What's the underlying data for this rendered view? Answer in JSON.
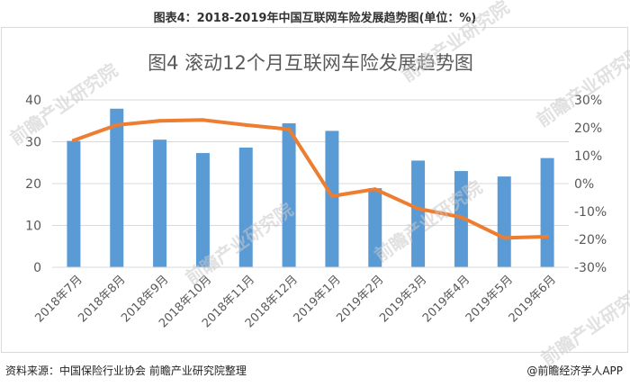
{
  "caption": "图表4：2018-2019年中国互联网车险发展趋势图(单位：%)",
  "footer": {
    "source": "资料来源：中国保险行业协会 前瞻产业研究院整理",
    "brand": "@前瞻经济学人APP"
  },
  "watermark": "前瞻产业研究院",
  "colors": {
    "bar": "#5b9bd5",
    "line": "#ed7d31",
    "grid": "#d9d9d9",
    "axis_text": "#595959"
  },
  "chart_data": {
    "type": "bar",
    "title": "图4 滚动12个月互联网车险发展趋势图",
    "categories": [
      "2018年7月",
      "2018年8月",
      "2018年9月",
      "2018年10月",
      "2018年11月",
      "2018年12月",
      "2019年1月",
      "2019年2月",
      "2019年3月",
      "2019年4月",
      "2019年5月",
      "2019年6月"
    ],
    "series": [
      {
        "type": "bar",
        "axis": "left",
        "values": [
          30.2,
          37.9,
          30.5,
          27.3,
          28.6,
          34.4,
          32.6,
          18.9,
          25.5,
          23.0,
          21.7,
          26.1
        ]
      },
      {
        "type": "line",
        "axis": "right",
        "values": [
          15.5,
          21.0,
          22.5,
          22.8,
          21.0,
          19.5,
          -4.5,
          -2.0,
          -9.0,
          -12.0,
          -19.5,
          -19.0
        ]
      }
    ],
    "y_left": {
      "min": 0,
      "max": 40,
      "ticks": [
        0,
        10,
        20,
        30,
        40
      ],
      "tick_labels": [
        "0",
        "10",
        "20",
        "30",
        "40"
      ]
    },
    "y_right": {
      "min": -30,
      "max": 30,
      "ticks": [
        -30,
        -20,
        -10,
        0,
        10,
        20,
        30
      ],
      "tick_labels": [
        "-30%",
        "-20%",
        "-10%",
        "0%",
        "10%",
        "20%",
        "30%"
      ]
    },
    "grid": true,
    "legend": "none"
  }
}
